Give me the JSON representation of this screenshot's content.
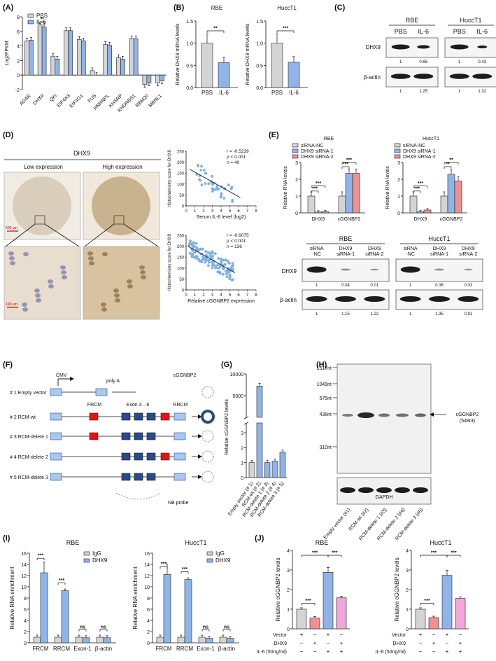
{
  "panels": {
    "A": {
      "label": "(A)",
      "legend": [
        "PBS",
        "IL-6"
      ],
      "ylabel": "Log2FPKM",
      "yticks": [
        "8",
        "6",
        "4",
        "2",
        "0",
        "-2"
      ],
      "sig": "**",
      "chart_data": {
        "type": "bar",
        "categories": [
          "ADAR",
          "DHX9",
          "QKI",
          "EIF4A3",
          "EIF4G1",
          "FUS",
          "HNRNPL",
          "KHSRP",
          "KHDRBS1",
          "RBM20",
          "MBNL1"
        ],
        "series": [
          {
            "name": "PBS",
            "values": [
              4.7,
              6.9,
              2.6,
              6.1,
              4.9,
              0.6,
              4.2,
              2.4,
              5.0,
              -1.3,
              -1.1
            ]
          },
          {
            "name": "IL-6",
            "values": [
              4.8,
              6.6,
              2.2,
              6.1,
              4.7,
              0.0,
              4.1,
              2.2,
              5.0,
              -1.1,
              -0.8
            ]
          }
        ],
        "ylim": [
          -2,
          8
        ]
      }
    },
    "B": {
      "label": "(B)",
      "ylabel": "Relative DHX9 mRNA levels",
      "yticks": [
        "1.5",
        "1.0",
        "0.5",
        "0.0"
      ],
      "charts": [
        {
          "title": "RBE",
          "categories": [
            "PBS",
            "IL-6"
          ],
          "values": [
            1.0,
            0.56
          ],
          "sig": "**"
        },
        {
          "title": "HuccT1",
          "categories": [
            "PBS",
            "IL-6"
          ],
          "values": [
            1.0,
            0.57
          ],
          "sig": "***"
        }
      ]
    },
    "C": {
      "label": "(C)",
      "cells": [
        "RBE",
        "HuccT1"
      ],
      "lanes": [
        "PBS",
        "IL-6",
        "PBS",
        "IL-6"
      ],
      "rows": [
        "DHX9",
        "β-actin"
      ],
      "dhx9_q": [
        "1",
        "0.66",
        "1",
        "0.43"
      ],
      "actin_q": [
        "1",
        "1.25",
        "1",
        "1.32"
      ]
    },
    "D": {
      "label": "(D)",
      "title": "DHX9",
      "low": "Low expression",
      "high": "High expression",
      "scale1": "500 μm",
      "scale2": "100 μm",
      "s1": {
        "stats": [
          "r = -0.5239",
          "p < 0.001",
          "n = 40"
        ],
        "ylabel": "Histochemistry score for DHX9",
        "xlabel": "Serum IL-6 level (log2)",
        "xticks": [
          "0",
          "1",
          "2",
          "3",
          "4",
          "5",
          "6",
          "7",
          "8"
        ],
        "yticks": [
          "0",
          "50",
          "100",
          "150",
          "200",
          "250"
        ]
      },
      "s2": {
        "stats": [
          "r = -0.6075",
          "p < 0.001",
          "n = 136"
        ],
        "ylabel": "Histochemistry score for DHX9",
        "xlabel": "Relative cGGNBP2 expression",
        "xticks": [
          "0",
          "1",
          "2",
          "3",
          "4",
          "5",
          "6",
          "7",
          "8"
        ],
        "yticks": [
          "0",
          "50",
          "100",
          "150",
          "200",
          "250"
        ]
      }
    },
    "E": {
      "label": "(E)",
      "ylabel": "Relative RNA levels",
      "legend": [
        "siRNA-NC",
        "DHX9 siRNA-1",
        "DHX9 siRNA-2"
      ],
      "groups": [
        "DHX9",
        "cGGNBP2"
      ],
      "charts": [
        {
          "title": "RBE",
          "yticks": [
            "3",
            "2",
            "1",
            "0"
          ],
          "ymax": 3,
          "values": [
            [
              1.0,
              0.05,
              0.07
            ],
            [
              1.0,
              2.35,
              2.35
            ]
          ],
          "sigs": [
            "***",
            "***",
            "***",
            "***"
          ]
        },
        {
          "title": "HuccT1",
          "yticks": [
            "3",
            "2",
            "1",
            "0"
          ],
          "ymax": 3,
          "values": [
            [
              1.0,
              0.07,
              0.17
            ],
            [
              1.0,
              2.3,
              1.9
            ]
          ],
          "sigs": [
            "***",
            "***",
            "**",
            "**"
          ]
        }
      ],
      "blot": {
        "cells": [
          "RBE",
          "HuccT1"
        ],
        "lanes": [
          "siRNA\n-NC",
          "DHX9\nsiRNA-1",
          "DHX9\nsiRNA-2",
          "siRNA\n-NC",
          "DHX9\nsiRNA-1",
          "DHX9\nsiRNA-2"
        ],
        "rows": [
          "DHX9",
          "β-actin"
        ],
        "dhx9_q": [
          "1",
          "0.04",
          "0.01",
          "1",
          "0.06",
          "0.03"
        ],
        "actin_q": [
          "1",
          "1.15",
          "1.22",
          "1",
          "1.35",
          "0.91"
        ]
      }
    },
    "F": {
      "label": "(F)",
      "cmv": "CMV",
      "polya": "poly A",
      "frcm": "FRCM",
      "exon": "Exon 3→6",
      "rrcm": "RRCM",
      "product": "cGGNBP2",
      "probe": "NB probe",
      "constructs": [
        "# 1 Empty vector",
        "# 2 RCM-wt",
        "# 3 RCM-delete 1",
        "# 4 RCM-delete 2",
        "# 5 RCM-delete 3"
      ]
    },
    "G": {
      "label": "(G)",
      "ylabel": "Relative cGGNBP2 levels",
      "yticks": [
        "10000",
        "5000",
        "3",
        "2",
        "1",
        "0"
      ],
      "categories": [
        "Empty vector (# 1)",
        "RCM-wt (# 2)",
        "RCM-delete 1 (# 3)",
        "RCM-delete 2 (# 4)",
        "RCM-delete 3 (# 5)"
      ],
      "chart_data": {
        "type": "bar",
        "categories": [
          "Empty vector (# 1)",
          "RCM-wt (# 2)",
          "RCM-delete 1 (# 3)",
          "RCM-delete 2 (# 4)",
          "RCM-delete 3 (# 5)"
        ],
        "values": [
          1.0,
          7200,
          1.0,
          1.1,
          1.7
        ]
      }
    },
    "H": {
      "label": "(H)",
      "markers": [
        "1517nt",
        "1049nt",
        "575nt",
        "438nt",
        "310nt"
      ],
      "band": "cGGNBP2",
      "band_size": "(548nt)",
      "gapdh": "GAPDH",
      "lanes": [
        "Empty vector (#1)",
        "RCM-wt (#2)",
        "RCM-delete 1 (#3)",
        "RCM-delete 2 (#4)",
        "RCM-delete 3 (#5)"
      ]
    },
    "I": {
      "label": "(I)",
      "ylabel": "Relative RNA enrichment",
      "legend": [
        "IgG",
        "DHX9"
      ],
      "categories": [
        "FRCM",
        "RRCM",
        "Exon-1",
        "β-actin"
      ],
      "yticks": [
        "16",
        "14",
        "12",
        "10",
        "8",
        "6",
        "4",
        "2",
        "0"
      ],
      "charts": [
        {
          "title": "RBE",
          "values": [
            [
              1.0,
              12.5
            ],
            [
              1.0,
              9.3
            ],
            [
              1.0,
              0.9
            ],
            [
              1.0,
              0.9
            ]
          ],
          "sigs": [
            "***",
            "***",
            "ns",
            "ns"
          ]
        },
        {
          "title": "HuccT1",
          "values": [
            [
              1.0,
              12.2
            ],
            [
              1.0,
              11.3
            ],
            [
              1.0,
              0.8
            ],
            [
              1.0,
              0.8
            ]
          ],
          "sigs": [
            "***",
            "***",
            "ns",
            "ns"
          ]
        }
      ]
    },
    "J": {
      "label": "(J)",
      "ylabel": "Relative cGGNBP2 levels",
      "rowlabels": [
        "Vector",
        "DHX9",
        "IL-6 (50ng/ml)"
      ],
      "signs": [
        [
          "+",
          "−",
          "+",
          "−"
        ],
        [
          "−",
          "+",
          "−",
          "+"
        ],
        [
          "−",
          "−",
          "+",
          "+"
        ]
      ],
      "charts": [
        {
          "title": "RBE",
          "yticks": [
            "4",
            "3",
            "2",
            "1",
            "0"
          ],
          "values": [
            1.0,
            0.55,
            2.88,
            1.58
          ],
          "sigs": [
            "***",
            "***",
            "***"
          ]
        },
        {
          "title": "HuccT1",
          "yticks": [
            "4",
            "3",
            "2",
            "1",
            "0"
          ],
          "values": [
            1.0,
            0.57,
            2.73,
            1.55
          ],
          "sigs": [
            "***",
            "***",
            "***"
          ]
        }
      ]
    }
  },
  "colors": {
    "grey": "#d4d4d4",
    "blue": "#8fb4ea",
    "red": "#f0908f",
    "pink": "#f2a6dc",
    "navy": "#2a4b8a",
    "redbox": "#e01515",
    "lightblue": "#7fb0e6",
    "dark": "#1c1c1c"
  }
}
